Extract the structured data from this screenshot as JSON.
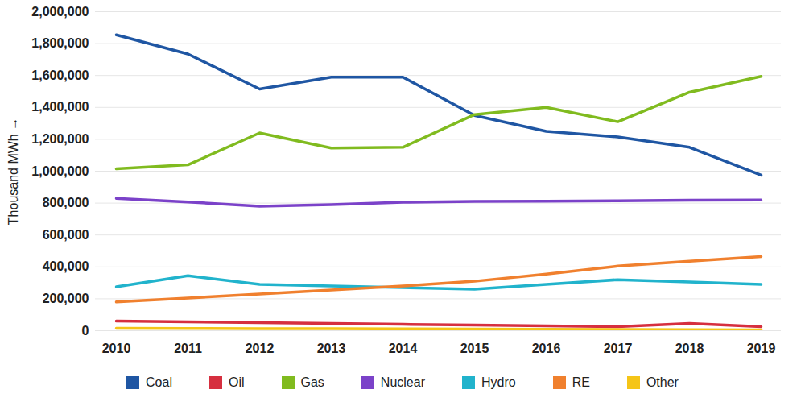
{
  "chart_data": {
    "type": "line",
    "y_label": "Thousand MWh",
    "categories": [
      "2010",
      "2011",
      "2012",
      "2013",
      "2014",
      "2015",
      "2016",
      "2017",
      "2018",
      "2019"
    ],
    "series": [
      {
        "name": "Coal",
        "color": "#1f56a3",
        "values": [
          1855000,
          1735000,
          1515000,
          1590000,
          1590000,
          1350000,
          1250000,
          1215000,
          1150000,
          975000
        ]
      },
      {
        "name": "Oil",
        "color": "#d62f3f",
        "values": [
          60000,
          55000,
          50000,
          45000,
          40000,
          35000,
          30000,
          25000,
          45000,
          25000
        ]
      },
      {
        "name": "Gas",
        "color": "#80bb1f",
        "values": [
          1015000,
          1040000,
          1240000,
          1145000,
          1150000,
          1355000,
          1400000,
          1310000,
          1495000,
          1595000
        ]
      },
      {
        "name": "Nuclear",
        "color": "#7b42c9",
        "values": [
          830000,
          807000,
          780000,
          790000,
          805000,
          810000,
          812000,
          815000,
          818000,
          820000
        ]
      },
      {
        "name": "Hydro",
        "color": "#21b3cc",
        "values": [
          275000,
          345000,
          290000,
          280000,
          270000,
          260000,
          290000,
          320000,
          305000,
          290000
        ]
      },
      {
        "name": "RE",
        "color": "#f0802e",
        "values": [
          180000,
          205000,
          230000,
          255000,
          280000,
          310000,
          355000,
          405000,
          435000,
          465000
        ]
      },
      {
        "name": "Other",
        "color": "#f5c518",
        "values": [
          15000,
          14000,
          13000,
          12000,
          11000,
          10000,
          9000,
          8000,
          6000,
          5000
        ]
      }
    ],
    "ylim": [
      0,
      2000000
    ],
    "yticks": [
      0,
      {
        "value": 200000,
        "label": "200,000"
      },
      {
        "value": 400000,
        "label": "400,000"
      },
      {
        "value": 600000,
        "label": "600,000"
      },
      {
        "value": 800000,
        "label": "800,000"
      },
      {
        "value": 1000000,
        "label": "1,000,000"
      },
      {
        "value": 1200000,
        "label": "1,200,000"
      },
      {
        "value": 1400000,
        "label": "1,400,000"
      },
      {
        "value": 1600000,
        "label": "1,600,000"
      },
      {
        "value": 1800000,
        "label": "1,800,000"
      },
      {
        "value": 2000000,
        "label": "2,000,000"
      }
    ],
    "grid": true,
    "legend": "bottom"
  }
}
